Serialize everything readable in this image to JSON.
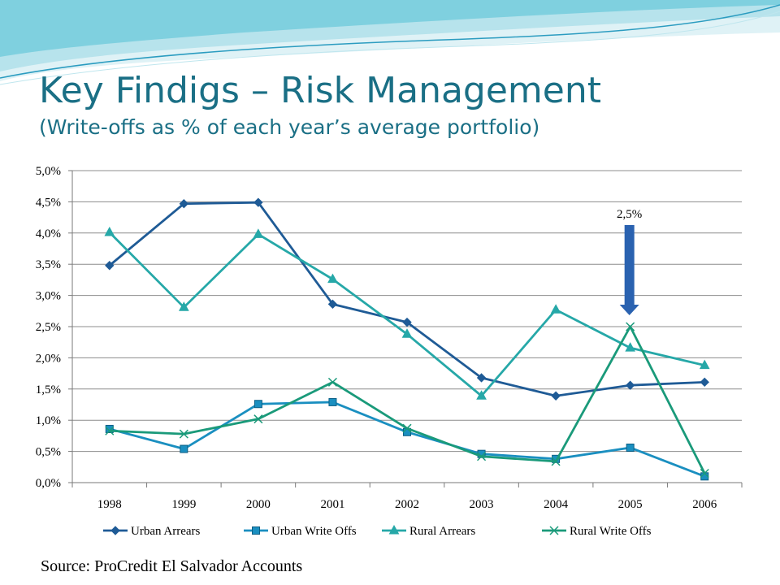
{
  "slide": {
    "title": "Key Findigs – Risk Management",
    "subtitle": "(Write-offs as % of each year’s average portfolio)",
    "source": "Source:  ProCredit El Salvador Accounts"
  },
  "colors": {
    "title": "#1a6f85",
    "urban_arrears": "#1f5b96",
    "urban_write_offs": "#1a8fc0",
    "rural_arrears": "#26a8a8",
    "rural_write_offs": "#1a9a7a",
    "arrow": "#2a62b0"
  },
  "chart_data": {
    "type": "line",
    "categories": [
      "1998",
      "1999",
      "2000",
      "2001",
      "2002",
      "2003",
      "2004",
      "2005",
      "2006"
    ],
    "y_ticks": [
      "0,0%",
      "0,5%",
      "1,0%",
      "1,5%",
      "2,0%",
      "2,5%",
      "3,0%",
      "3,5%",
      "4,0%",
      "4,5%",
      "5,0%"
    ],
    "ylim": [
      0,
      5
    ],
    "grid": true,
    "legend": "bottom",
    "series": [
      {
        "name": "Urban Arrears",
        "marker": "diamond",
        "color": "#1f5b96",
        "values": [
          3.48,
          4.47,
          4.49,
          2.86,
          2.57,
          1.68,
          1.39,
          1.56,
          1.61
        ]
      },
      {
        "name": "Urban Write Offs",
        "marker": "square",
        "color": "#1a8fc0",
        "values": [
          0.86,
          0.54,
          1.26,
          1.29,
          0.81,
          0.46,
          0.38,
          0.56,
          0.1
        ]
      },
      {
        "name": "Rural Arrears",
        "marker": "triangle",
        "color": "#26a8a8",
        "values": [
          4.01,
          2.81,
          3.98,
          3.26,
          2.38,
          1.39,
          2.77,
          2.16,
          1.88
        ]
      },
      {
        "name": "Rural Write Offs",
        "marker": "x",
        "color": "#1a9a7a",
        "values": [
          0.83,
          0.78,
          1.02,
          1.61,
          0.87,
          0.42,
          0.34,
          2.5,
          0.15
        ]
      }
    ],
    "annotation": {
      "text": "2,5%",
      "category": "2005",
      "value": 2.5
    }
  }
}
